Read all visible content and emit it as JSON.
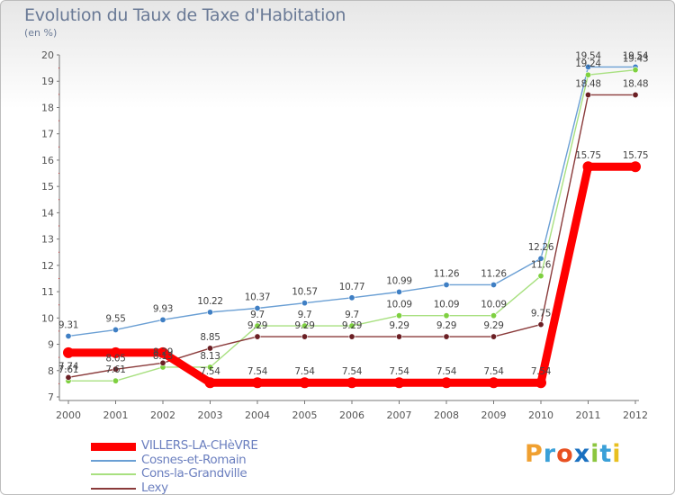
{
  "title": "Evolution du Taux de Taxe d'Habitation",
  "subtitle": "(en %)",
  "brand": {
    "letters": [
      "P",
      "r",
      "o",
      "x",
      "i",
      "t",
      "i"
    ],
    "colors": [
      "#f0a030",
      "#3aa0d8",
      "#e85020",
      "#1a70c0",
      "#8cc63f",
      "#3aa0d8",
      "#e8c020"
    ]
  },
  "chart_data": {
    "type": "line",
    "x": [
      "2000",
      "2001",
      "2002",
      "2003",
      "2004",
      "2005",
      "2006",
      "2007",
      "2008",
      "2009",
      "2010",
      "2011",
      "2012"
    ],
    "ylim": [
      7,
      20
    ],
    "yticks": [
      "7",
      "8",
      "9",
      "10",
      "11",
      "12",
      "13",
      "14",
      "15",
      "16",
      "17",
      "18",
      "19",
      "20"
    ],
    "grid": false,
    "legend_position": "bottom-left",
    "series": [
      {
        "name": "VILLERS-LA-CHèVRE",
        "color": "#ff0000",
        "values": [
          8.68,
          8.68,
          8.68,
          7.54,
          7.54,
          7.54,
          7.54,
          7.54,
          7.54,
          7.54,
          7.54,
          15.75,
          15.75
        ],
        "labels": [
          "",
          "",
          "",
          "7.54",
          "7.54",
          "7.54",
          "7.54",
          "7.54",
          "7.54",
          "7.54",
          "7.54",
          "15.75",
          "15.75"
        ]
      },
      {
        "name": "Cosnes-et-Romain",
        "color": "#6a9fd4",
        "marker": "#3f7fc4",
        "values": [
          9.31,
          9.55,
          9.93,
          10.22,
          10.37,
          10.57,
          10.77,
          10.99,
          11.26,
          11.26,
          12.26,
          19.54,
          19.54
        ],
        "labels": [
          "9.31",
          "9.55",
          "9.93",
          "10.22",
          "10.37",
          "10.57",
          "10.77",
          "10.99",
          "11.26",
          "11.26",
          "12.26",
          "19.54",
          "19.54"
        ]
      },
      {
        "name": "Cons-la-Grandville",
        "color": "#a8e080",
        "marker": "#7ed040",
        "values": [
          7.61,
          7.61,
          8.13,
          8.13,
          9.7,
          9.7,
          9.7,
          10.09,
          10.09,
          10.09,
          11.6,
          19.24,
          19.43
        ],
        "labels": [
          "7.61",
          "7.61",
          "8.13",
          "8.13",
          "9.7",
          "9.7",
          "9.7",
          "10.09",
          "10.09",
          "10.09",
          "11.6",
          "19.24",
          "19.43"
        ]
      },
      {
        "name": "Lexy",
        "color": "#8a3a3a",
        "marker": "#6b1f24",
        "values": [
          7.74,
          8.05,
          8.29,
          8.85,
          9.29,
          9.29,
          9.29,
          9.29,
          9.29,
          9.29,
          9.75,
          18.48,
          18.48
        ],
        "labels": [
          "7.74",
          "8.05",
          "8.29",
          "8.85",
          "9.29",
          "9.29",
          "9.29",
          "9.29",
          "9.29",
          "9.29",
          "9.75",
          "18.48",
          "18.48"
        ]
      }
    ]
  }
}
